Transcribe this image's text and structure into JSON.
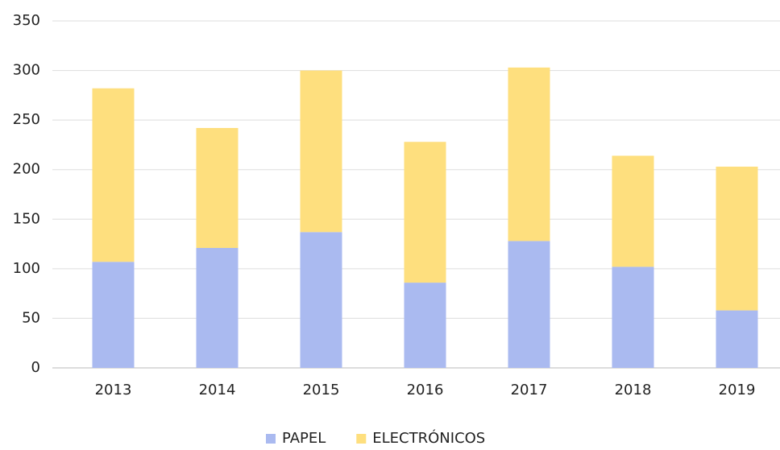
{
  "chart_data": {
    "type": "stacked_bar",
    "categories": [
      "2013",
      "2014",
      "2015",
      "2016",
      "2017",
      "2018",
      "2019"
    ],
    "series": [
      {
        "name": "PAPEL",
        "color": "#aabaf0",
        "values": [
          107,
          121,
          137,
          86,
          128,
          102,
          58
        ]
      },
      {
        "name": "ELECTRÓNICOS",
        "color": "#fedf7e",
        "values": [
          175,
          121,
          163,
          142,
          175,
          112,
          145
        ]
      }
    ],
    "ylim": [
      0,
      350
    ],
    "yticks": [
      0,
      50,
      100,
      150,
      200,
      250,
      300,
      350
    ],
    "grid": true,
    "legend": "bottom"
  }
}
